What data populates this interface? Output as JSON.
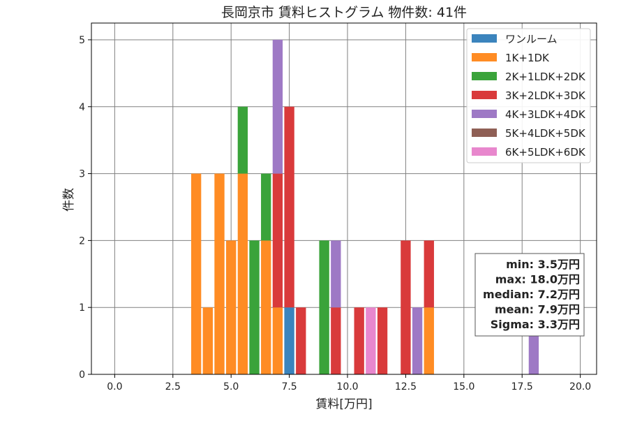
{
  "chart_data": {
    "type": "bar",
    "stacked": true,
    "title": "長岡京市 賃料ヒストグラム  物件数: 41件",
    "xlabel": "賃料[万円]",
    "ylabel": "件数",
    "xlim": [
      -1.0,
      20.7
    ],
    "ylim": [
      0,
      5.25
    ],
    "xticks": [
      0.0,
      2.5,
      5.0,
      7.5,
      10.0,
      12.5,
      15.0,
      17.5,
      20.0
    ],
    "xtick_labels": [
      "0.0",
      "2.5",
      "5.0",
      "7.5",
      "10.0",
      "12.5",
      "15.0",
      "17.5",
      "20.0"
    ],
    "yticks": [
      0,
      1,
      2,
      3,
      4,
      5
    ],
    "ytick_labels": [
      "0",
      "1",
      "2",
      "3",
      "4",
      "5"
    ],
    "grid": true,
    "legend_position": "top-right",
    "bin_width": 0.5,
    "bin_centers": [
      3.5,
      4.0,
      4.5,
      5.0,
      5.5,
      6.0,
      6.5,
      7.0,
      7.5,
      8.0,
      9.0,
      9.5,
      10.5,
      11.0,
      11.5,
      12.5,
      13.0,
      13.5,
      18.0
    ],
    "series": [
      {
        "name": "ワンルーム",
        "color": "#3b84bd",
        "values": [
          0,
          0,
          0,
          0,
          0,
          0,
          0,
          0,
          1,
          0,
          0,
          0,
          0,
          0,
          0,
          0,
          0,
          0,
          0
        ]
      },
      {
        "name": "1K+1DK",
        "color": "#ff8c24",
        "values": [
          3,
          1,
          3,
          2,
          3,
          0,
          2,
          1,
          0,
          0,
          0,
          0,
          0,
          0,
          0,
          0,
          0,
          1,
          0
        ]
      },
      {
        "name": "2K+1LDK+2DK",
        "color": "#3aa33a",
        "values": [
          0,
          0,
          0,
          0,
          1,
          2,
          1,
          0,
          0,
          0,
          2,
          0,
          0,
          0,
          0,
          0,
          0,
          0,
          0
        ]
      },
      {
        "name": "3K+2LDK+3DK",
        "color": "#d93a3b",
        "values": [
          0,
          0,
          0,
          0,
          0,
          0,
          0,
          2,
          3,
          1,
          0,
          1,
          1,
          0,
          1,
          2,
          0,
          1,
          0
        ]
      },
      {
        "name": "4K+3LDK+4DK",
        "color": "#9e79c5",
        "values": [
          0,
          0,
          0,
          0,
          0,
          0,
          0,
          2,
          0,
          0,
          0,
          1,
          0,
          0,
          0,
          0,
          1,
          0,
          1
        ]
      },
      {
        "name": "5K+4LDK+5DK",
        "color": "#8f5f55",
        "values": [
          0,
          0,
          0,
          0,
          0,
          0,
          0,
          0,
          0,
          0,
          0,
          0,
          0,
          0,
          0,
          0,
          0,
          0,
          0
        ]
      },
      {
        "name": "6K+5LDK+6DK",
        "color": "#e887cd",
        "values": [
          0,
          0,
          0,
          0,
          0,
          0,
          0,
          0,
          0,
          0,
          0,
          0,
          0,
          1,
          0,
          0,
          0,
          0,
          0
        ]
      }
    ],
    "stats": [
      "min: 3.5万円",
      "max: 18.0万円",
      "median: 7.2万円",
      "mean: 7.9万円",
      "Sigma: 3.3万円"
    ]
  }
}
